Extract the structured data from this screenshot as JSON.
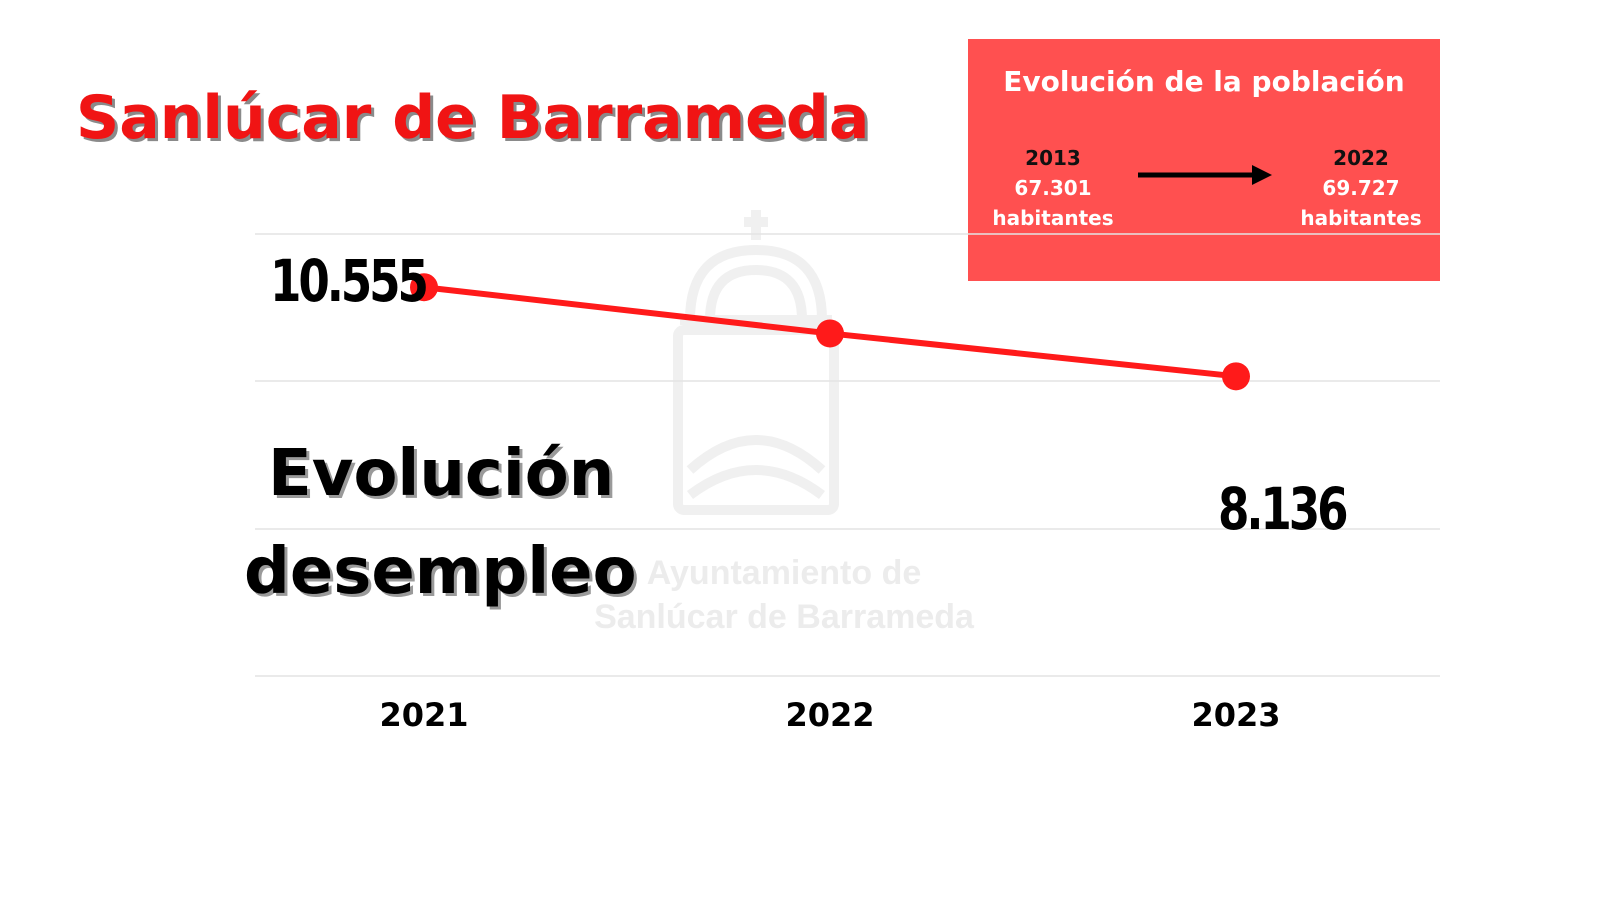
{
  "title": "Sanlúcar de Barrameda",
  "watermark": {
    "line1": "Ayuntamiento de",
    "line2": "Sanlúcar de Barrameda"
  },
  "population": {
    "title": "Evolución de la población",
    "start": {
      "year": "2013",
      "value": "67.301",
      "unit": "habitantes"
    },
    "end": {
      "year": "2022",
      "value": "69.727",
      "unit": "habitantes"
    },
    "arrow_icon": "arrow-right-icon"
  },
  "chart_data": {
    "type": "line",
    "subtitle_line1": "Evolución",
    "subtitle_line2": "desempleo",
    "categories": [
      "2021",
      "2022",
      "2023"
    ],
    "series": [
      {
        "values": [
          10555,
          9300,
          8136
        ]
      }
    ],
    "labels": {
      "first": "10.555",
      "last": "8.136"
    },
    "ylim": [
      0,
      12000
    ],
    "grid": true,
    "line_color": "#ff1a1a"
  }
}
